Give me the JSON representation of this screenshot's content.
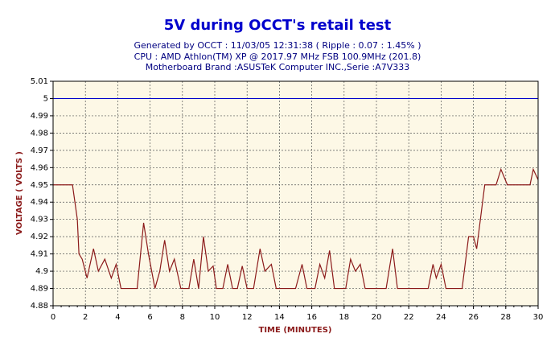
{
  "chart_data": {
    "type": "line",
    "title": "5V during OCCT's retail test",
    "subtitle_lines": [
      "Generated by OCCT : 11/03/05 12:31:38 ( Ripple : 0.07 : 1.45% )",
      "CPU : AMD Athlon(TM) XP @ 2017.97 MHz FSB 100.9MHz (201.8)",
      "Motherboard Brand :ASUSTeK Computer INC.,Serie :A7V333"
    ],
    "x_label": "TIME (MINUTES)",
    "y_label": "VOLTAGE ( VOLTS )",
    "x": [
      0,
      1.2,
      1.5,
      1.6,
      1.8,
      2.1,
      2.5,
      2.8,
      3.2,
      3.6,
      3.9,
      4.2,
      5.2,
      5.6,
      5.9,
      6.3,
      6.6,
      6.9,
      7.2,
      7.5,
      7.9,
      8.4,
      8.7,
      9.0,
      9.3,
      9.6,
      9.9,
      10.1,
      10.5,
      10.8,
      11.1,
      11.4,
      11.7,
      12.0,
      12.4,
      12.8,
      13.1,
      13.5,
      13.8,
      15.0,
      15.4,
      15.7,
      16.2,
      16.5,
      16.8,
      17.1,
      17.4,
      18.1,
      18.4,
      18.7,
      19.0,
      19.3,
      20.6,
      21.0,
      21.3,
      23.2,
      23.5,
      23.7,
      24.0,
      24.3,
      25.3,
      25.7,
      26.0,
      26.2,
      26.7,
      27.4,
      27.7,
      28.1,
      29.5,
      29.7,
      30
    ],
    "series": [
      {
        "color": "#8b1a1a",
        "values": [
          4.95,
          4.95,
          4.93,
          4.91,
          4.907,
          4.896,
          4.913,
          4.9,
          4.907,
          4.896,
          4.904,
          4.89,
          4.89,
          4.928,
          4.91,
          4.89,
          4.9,
          4.918,
          4.9,
          4.907,
          4.89,
          4.89,
          4.907,
          4.89,
          4.92,
          4.9,
          4.903,
          4.89,
          4.89,
          4.904,
          4.89,
          4.89,
          4.903,
          4.89,
          4.89,
          4.913,
          4.9,
          4.904,
          4.89,
          4.89,
          4.904,
          4.89,
          4.89,
          4.904,
          4.896,
          4.912,
          4.89,
          4.89,
          4.907,
          4.9,
          4.904,
          4.89,
          4.89,
          4.913,
          4.89,
          4.89,
          4.904,
          4.896,
          4.904,
          4.89,
          4.89,
          4.92,
          4.92,
          4.913,
          4.95,
          4.95,
          4.959,
          4.95,
          4.95,
          4.959,
          4.953
        ]
      }
    ],
    "reference_line": {
      "value": 5,
      "color": "#0000cc"
    },
    "xlim": [
      0,
      30
    ],
    "xticks": [
      0,
      2,
      4,
      6,
      8,
      10,
      12,
      14,
      16,
      18,
      20,
      22,
      24,
      26,
      28,
      30
    ],
    "ylim": [
      4.88,
      5.01
    ],
    "yticks": [
      4.88,
      4.89,
      4.9,
      4.91,
      4.92,
      4.93,
      4.94,
      4.95,
      4.96,
      4.97,
      4.98,
      4.99,
      5,
      5.01
    ],
    "grid": true
  }
}
